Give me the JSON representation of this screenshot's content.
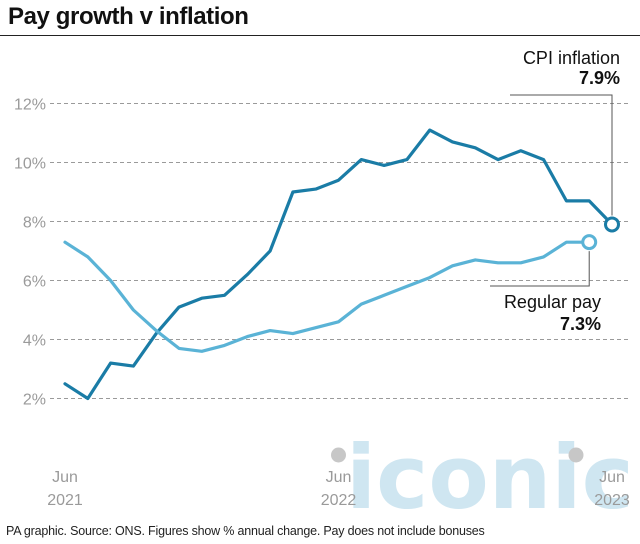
{
  "title": "Pay growth v inflation",
  "footer": "PA graphic. Source: ONS. Figures show % annual change. Pay does not include bonuses",
  "watermark": "iconic",
  "chart_data": {
    "type": "line",
    "ylim": [
      0,
      12
    ],
    "y_ticks": [
      {
        "value": 2,
        "label": "2%"
      },
      {
        "value": 4,
        "label": "4%"
      },
      {
        "value": 6,
        "label": "6%"
      },
      {
        "value": 8,
        "label": "8%"
      },
      {
        "value": 10,
        "label": "10%"
      },
      {
        "value": 12,
        "label": "12%"
      }
    ],
    "x_ticks": [
      {
        "index": 0,
        "label": [
          "Jun",
          "2021"
        ]
      },
      {
        "index": 12,
        "label": [
          "Jun",
          "2022"
        ]
      },
      {
        "index": 24,
        "label": [
          "Jun",
          "2023"
        ]
      }
    ],
    "grid": true,
    "series": [
      {
        "name": "CPI inflation",
        "color": "#1a7ca6",
        "end_value_label": "7.9%",
        "values": [
          2.5,
          2.0,
          3.2,
          3.1,
          4.2,
          5.1,
          5.4,
          5.5,
          6.2,
          7.0,
          9.0,
          9.1,
          9.4,
          10.1,
          9.9,
          10.1,
          11.1,
          10.7,
          10.5,
          10.1,
          10.4,
          10.1,
          8.7,
          8.7,
          7.9
        ]
      },
      {
        "name": "Regular pay",
        "color": "#5ab3d6",
        "end_value_label": "7.3%",
        "values": [
          7.3,
          6.8,
          6.0,
          5.0,
          4.3,
          3.7,
          3.6,
          3.8,
          4.1,
          4.3,
          4.2,
          4.4,
          4.6,
          5.2,
          5.5,
          5.8,
          6.1,
          6.5,
          6.7,
          6.6,
          6.6,
          6.8,
          7.3,
          7.3
        ]
      }
    ]
  }
}
